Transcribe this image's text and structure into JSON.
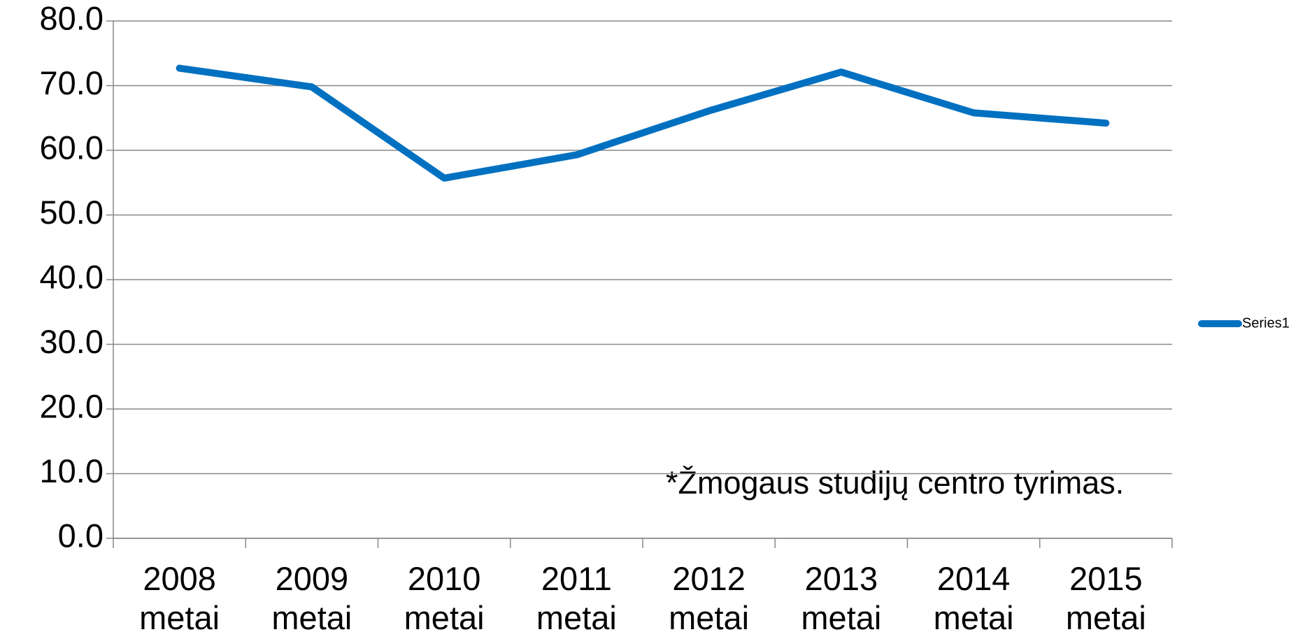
{
  "chart_data": {
    "type": "line",
    "categories": [
      "2008 metai",
      "2009 metai",
      "2010 metai",
      "2011 metai",
      "2012 metai",
      "2013 metai",
      "2014 metai",
      "2015 metai"
    ],
    "series": [
      {
        "name": "Series1",
        "color": "#0070c0",
        "values": [
          72.7,
          69.8,
          55.7,
          59.3,
          66.1,
          72.1,
          65.8,
          64.2
        ]
      }
    ],
    "ylim": [
      0,
      80
    ],
    "yticks": [
      {
        "value": 0,
        "label": "0.0"
      },
      {
        "value": 10,
        "label": "10.0"
      },
      {
        "value": 20,
        "label": "20.0"
      },
      {
        "value": 30,
        "label": "30.0"
      },
      {
        "value": 40,
        "label": "40.0"
      },
      {
        "value": 50,
        "label": "50.0"
      },
      {
        "value": 60,
        "label": "60.0"
      },
      {
        "value": 70,
        "label": "70.0"
      },
      {
        "value": 80,
        "label": "80.0"
      }
    ],
    "grid": true,
    "legend": "right",
    "annotation": "*Žmogaus studijų centro tyrimas."
  }
}
